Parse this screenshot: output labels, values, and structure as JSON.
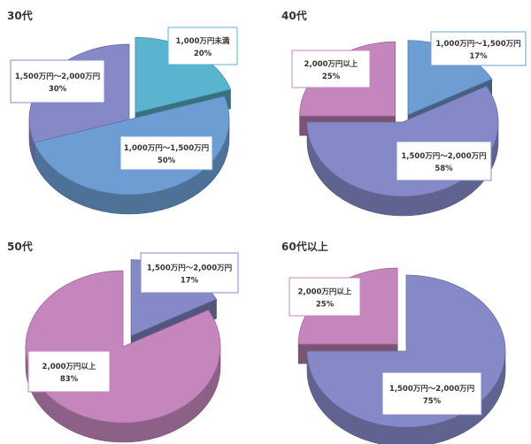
{
  "colors": {
    "teal": "#5bb4cf",
    "blue": "#6d9dd2",
    "purple": "#8689c8",
    "pink": "#c486bd"
  },
  "chart_data": [
    {
      "type": "pie",
      "title": "30代",
      "slices": [
        {
          "label": "1,000万円未満",
          "value": 20,
          "display": "20%",
          "color": "teal",
          "exploded": true
        },
        {
          "label": "1,000万円～1,500万円",
          "value": 50,
          "display": "50%",
          "color": "blue",
          "exploded": false
        },
        {
          "label": "1,500万円～2,000万円",
          "value": 30,
          "display": "30%",
          "color": "purple",
          "exploded": false
        }
      ]
    },
    {
      "type": "pie",
      "title": "40代",
      "slices": [
        {
          "label": "1,000万円～1,500万円",
          "value": 17,
          "display": "17%",
          "color": "blue",
          "exploded": true
        },
        {
          "label": "1,500万円～2,000万円",
          "value": 58,
          "display": "58%",
          "color": "purple",
          "exploded": false
        },
        {
          "label": "2,000万円以上",
          "value": 25,
          "display": "25%",
          "color": "pink",
          "exploded": true
        }
      ]
    },
    {
      "type": "pie",
      "title": "50代",
      "slices": [
        {
          "label": "1,500万円～2,000万円",
          "value": 17,
          "display": "17%",
          "color": "purple",
          "exploded": true
        },
        {
          "label": "2,000万円以上",
          "value": 83,
          "display": "83%",
          "color": "pink",
          "exploded": false
        }
      ]
    },
    {
      "type": "pie",
      "title": "60代以上",
      "slices": [
        {
          "label": "1,500万円～2,000万円",
          "value": 75,
          "display": "75%",
          "color": "purple",
          "exploded": false
        },
        {
          "label": "2,000万円以上",
          "value": 25,
          "display": "25%",
          "color": "pink",
          "exploded": true
        }
      ]
    }
  ]
}
